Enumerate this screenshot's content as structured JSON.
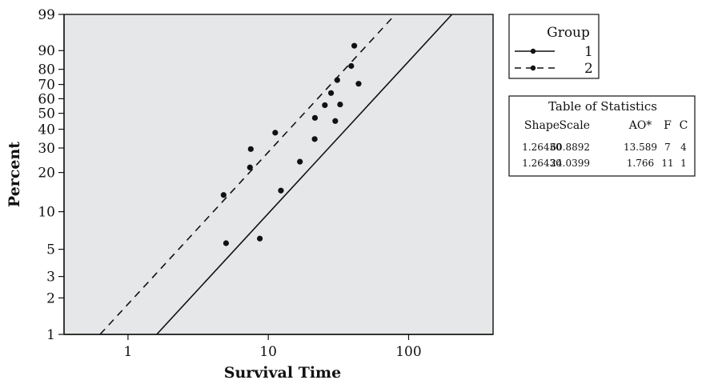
{
  "chart_data": {
    "type": "scatter",
    "subtype": "weibull-probability-plot",
    "xlabel": "Survival Time",
    "ylabel": "Percent",
    "x_scale": "log",
    "y_scale": "weibull-probability",
    "xlim": [
      0.35,
      400
    ],
    "ylim": [
      1,
      99
    ],
    "x_ticks": [
      {
        "value": 1,
        "label": "1"
      },
      {
        "value": 10,
        "label": "10"
      },
      {
        "value": 100,
        "label": "100"
      }
    ],
    "y_ticks": [
      {
        "value": 1,
        "label": "1"
      },
      {
        "value": 2,
        "label": "2"
      },
      {
        "value": 3,
        "label": "3"
      },
      {
        "value": 5,
        "label": "5"
      },
      {
        "value": 10,
        "label": "10"
      },
      {
        "value": 20,
        "label": "20"
      },
      {
        "value": 30,
        "label": "30"
      },
      {
        "value": 40,
        "label": "40"
      },
      {
        "value": 50,
        "label": "50"
      },
      {
        "value": 60,
        "label": "60"
      },
      {
        "value": 70,
        "label": "70"
      },
      {
        "value": 80,
        "label": "80"
      },
      {
        "value": 90,
        "label": "90"
      },
      {
        "value": 99,
        "label": "99"
      }
    ],
    "grid": false,
    "plot_background": "#e6e7e8",
    "legend": {
      "title": "Group",
      "position": "top-right",
      "entries": [
        {
          "label": "1",
          "line_style": "solid"
        },
        {
          "label": "2",
          "line_style": "dashed"
        }
      ]
    },
    "series": [
      {
        "name": "1",
        "line_style": "solid",
        "shape": 1.2643,
        "scale": 60.8892,
        "points": [
          {
            "x": 8.7,
            "y": 6.1
          },
          {
            "x": 12.3,
            "y": 14.6
          },
          {
            "x": 16.8,
            "y": 24.0
          },
          {
            "x": 21.4,
            "y": 34.5
          },
          {
            "x": 21.5,
            "y": 47.0
          },
          {
            "x": 25.3,
            "y": 55.5
          },
          {
            "x": 30.0,
            "y": 45.0
          },
          {
            "x": 32.5,
            "y": 56.0
          },
          {
            "x": 44.0,
            "y": 70.5
          }
        ]
      },
      {
        "name": "2",
        "line_style": "dashed",
        "shape": 1.2643,
        "scale": 24.0399,
        "points": [
          {
            "x": 4.8,
            "y": 13.5
          },
          {
            "x": 5.0,
            "y": 5.6
          },
          {
            "x": 7.4,
            "y": 21.8
          },
          {
            "x": 7.5,
            "y": 29.5
          },
          {
            "x": 11.2,
            "y": 38.0
          },
          {
            "x": 28.0,
            "y": 64.0
          },
          {
            "x": 31.0,
            "y": 73.0
          },
          {
            "x": 39.0,
            "y": 82.0
          },
          {
            "x": 41.0,
            "y": 92.0
          }
        ]
      }
    ],
    "stats_table": {
      "title": "Table of Statistics",
      "headers": [
        "Shape",
        "Scale",
        "AO*",
        "F",
        "C"
      ],
      "rows": [
        [
          "1.26430",
          "60.8892",
          "13.589",
          "7",
          "4"
        ],
        [
          "1.26430",
          "24.0399",
          "1.766",
          "11",
          "1"
        ]
      ]
    }
  }
}
